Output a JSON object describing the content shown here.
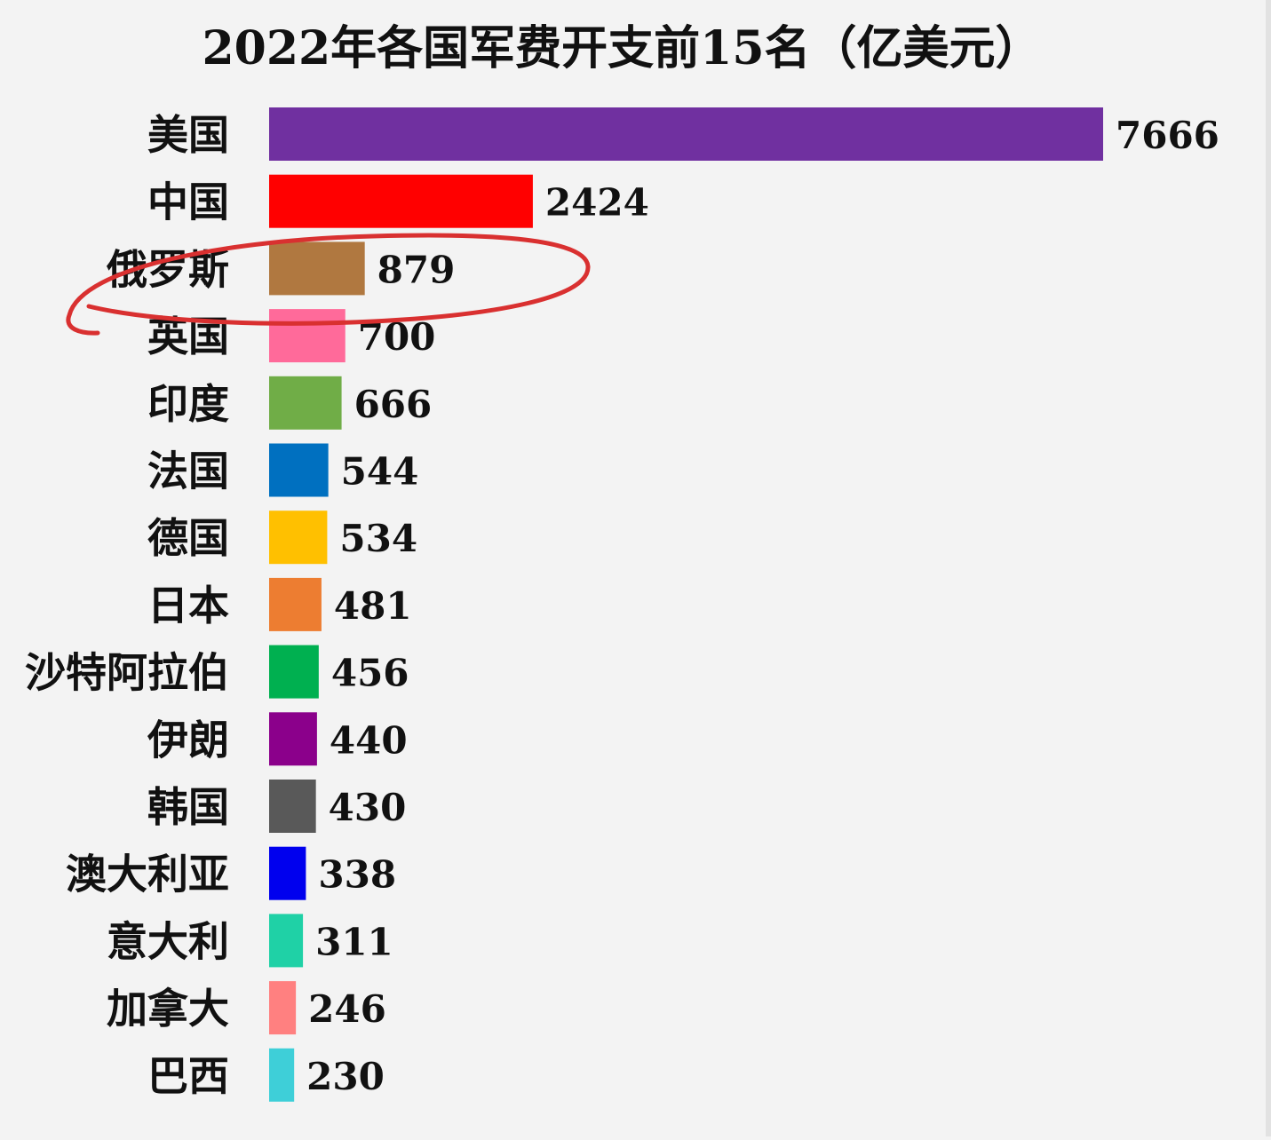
{
  "chart_data": {
    "type": "bar",
    "orientation": "horizontal",
    "title": "2022年各国军费开支前15名（亿美元）",
    "categories": [
      "美国",
      "中国",
      "俄罗斯",
      "英国",
      "印度",
      "法国",
      "德国",
      "日本",
      "沙特阿拉伯",
      "伊朗",
      "韩国",
      "澳大利亚",
      "意大利",
      "加拿大",
      "巴西"
    ],
    "values": [
      7666,
      2424,
      879,
      700,
      666,
      544,
      534,
      481,
      456,
      440,
      430,
      338,
      311,
      246,
      230
    ],
    "colors": [
      "#7030a0",
      "#ff0000",
      "#b07840",
      "#ff6a9a",
      "#70ad47",
      "#0070c0",
      "#ffc000",
      "#ed7d31",
      "#00b050",
      "#8b008b",
      "#595959",
      "#0000ee",
      "#1fd1a6",
      "#ff8080",
      "#3ecfd8"
    ],
    "highlighted_category": "俄罗斯",
    "highlight_color": "#d93030",
    "data_labels": true,
    "grid": false,
    "legend": "none"
  }
}
